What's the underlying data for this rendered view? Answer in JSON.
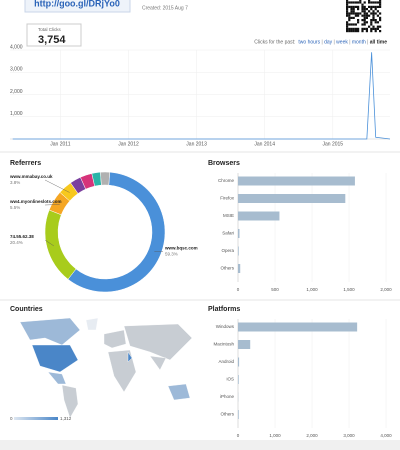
{
  "header": {
    "short_url": "http://goo.gl/DRjYo0",
    "created": "Created: 2015 Aug 7",
    "total_label": "Total Clicks",
    "total_value": "3,754",
    "period_label": "Clicks for the past:",
    "period_options": [
      "two hours",
      "day",
      "week",
      "month",
      "all time"
    ]
  },
  "chart_data": [
    {
      "type": "line",
      "x": [
        2010.3,
        2015.5,
        2015.57,
        2015.63,
        2015.84
      ],
      "series": [
        {
          "color": "#4a90d9",
          "values": [
            0,
            0,
            3900,
            80,
            0
          ]
        }
      ],
      "xlim": [
        2010.26,
        2015.84
      ],
      "xticks": [
        {
          "value": 2011,
          "label": "Jan 2011"
        },
        {
          "value": 2012,
          "label": "Jan 2012"
        },
        {
          "value": 2013,
          "label": "Jan 2013"
        },
        {
          "value": 2014,
          "label": "Jan 2014"
        },
        {
          "value": 2015,
          "label": "Jan 2015"
        }
      ],
      "ylim": [
        0,
        4000
      ],
      "yticks": [
        {
          "value": 1000,
          "label": "1,000"
        },
        {
          "value": 2000,
          "label": "2,000"
        },
        {
          "value": 3000,
          "label": "3,000"
        },
        {
          "value": 4000,
          "label": "4,000"
        }
      ],
      "grid": true
    },
    {
      "type": "donut",
      "title": "Referrers",
      "categories": [
        "www.bqsc.com",
        "74.55.62.38",
        "ww4.myonlineslots.com",
        "www.mmabay.co.uk",
        null,
        null,
        null,
        null
      ],
      "values": [
        59.3,
        20.4,
        5.5,
        3.8,
        3.0,
        3.2,
        2.3,
        2.5
      ],
      "value_labels": [
        "59.3%",
        "20.4%",
        "5.5%",
        "3.8%",
        null,
        null,
        null,
        null
      ],
      "colors": [
        "#4a90d9",
        "#a8cc1c",
        "#f5a623",
        "#f7c81e",
        "#7b3f9e",
        "#d6337a",
        "#2bb5a8",
        "#b0b0b0"
      ]
    },
    {
      "type": "hbar",
      "title": "Browsers",
      "categories": [
        "Chrome",
        "Firefox",
        "MSIE",
        "Safari",
        "Opera",
        "Others"
      ],
      "values": [
        1580,
        1450,
        560,
        20,
        10,
        30
      ],
      "color": "#a7bccf",
      "xlim": [
        0,
        2000
      ],
      "xticks": [
        0,
        500,
        {
          "value": 1000,
          "label": "1,000"
        },
        {
          "value": 1500,
          "label": "1,500"
        },
        {
          "value": 2000,
          "label": "2,000"
        }
      ],
      "grid": true
    },
    {
      "type": "choropleth",
      "title": "Countries",
      "scale": [
        0,
        {
          "value": 1312,
          "label": "1,312"
        }
      ],
      "colors": [
        "#dde6f0",
        "#4a86c8"
      ]
    },
    {
      "type": "hbar",
      "title": "Platforms",
      "categories": [
        "Windows",
        "Macintosh",
        "Android",
        "iOS",
        "iPhone",
        "Others"
      ],
      "values": [
        3220,
        330,
        30,
        20,
        5,
        20
      ],
      "color": "#a7bccf",
      "xlim": [
        0,
        4000
      ],
      "xticks": [
        0,
        {
          "value": 1000,
          "label": "1,000"
        },
        {
          "value": 2000,
          "label": "2,000"
        },
        {
          "value": 3000,
          "label": "3,000"
        },
        {
          "value": 4000,
          "label": "4,000"
        }
      ],
      "grid": true
    }
  ]
}
